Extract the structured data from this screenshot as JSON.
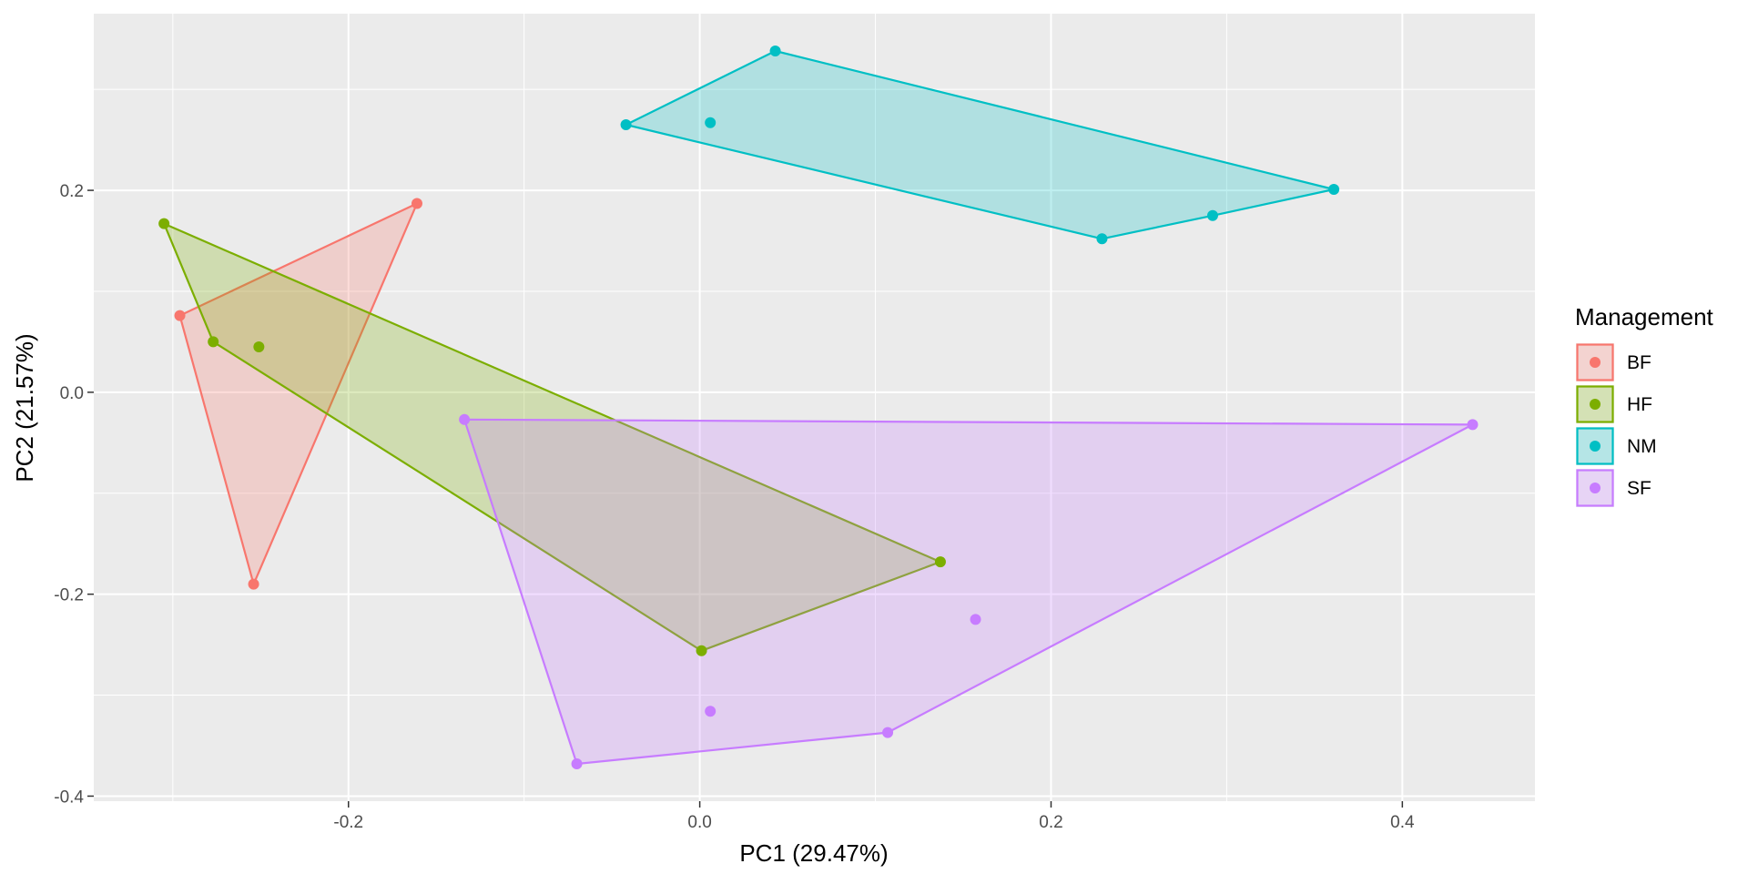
{
  "chart_data": {
    "type": "scatter",
    "xlabel": "PC1 (29.47%)",
    "ylabel": "PC2 (21.57%)",
    "xlim": [
      -0.345,
      0.4755
    ],
    "ylim": [
      -0.405,
      0.375
    ],
    "x_ticks": [
      -0.2,
      0.0,
      0.2,
      0.4
    ],
    "x_tick_labels": [
      "-0.2",
      "0.0",
      "0.2",
      "0.4"
    ],
    "y_ticks": [
      -0.4,
      -0.2,
      0.0,
      0.2
    ],
    "y_tick_labels": [
      "-0.4",
      "-0.2",
      "0.0",
      "0.2"
    ],
    "grid": true,
    "legend_title": "Management",
    "legend_position": "right",
    "hull_fill_alpha": 0.25,
    "series": [
      {
        "name": "BF",
        "color": "#F8766D",
        "points": [
          [
            -0.296,
            0.076
          ],
          [
            -0.161,
            0.187
          ],
          [
            -0.254,
            -0.19
          ]
        ],
        "hull": [
          [
            -0.296,
            0.076
          ],
          [
            -0.161,
            0.187
          ],
          [
            -0.254,
            -0.19
          ]
        ]
      },
      {
        "name": "HF",
        "color": "#7CAE00",
        "points": [
          [
            -0.305,
            0.167
          ],
          [
            -0.277,
            0.05
          ],
          [
            -0.251,
            0.045
          ],
          [
            0.137,
            -0.168
          ],
          [
            0.001,
            -0.256
          ]
        ],
        "hull": [
          [
            -0.305,
            0.167
          ],
          [
            0.137,
            -0.168
          ],
          [
            0.001,
            -0.256
          ],
          [
            -0.277,
            0.05
          ]
        ]
      },
      {
        "name": "NM",
        "color": "#00BFC4",
        "points": [
          [
            -0.042,
            0.265
          ],
          [
            0.043,
            0.338
          ],
          [
            0.006,
            0.267
          ],
          [
            0.361,
            0.201
          ],
          [
            0.292,
            0.175
          ],
          [
            0.229,
            0.152
          ]
        ],
        "hull": [
          [
            -0.042,
            0.265
          ],
          [
            0.043,
            0.338
          ],
          [
            0.361,
            0.201
          ],
          [
            0.292,
            0.175
          ],
          [
            0.229,
            0.152
          ]
        ]
      },
      {
        "name": "SF",
        "color": "#C77CFF",
        "points": [
          [
            -0.134,
            -0.027
          ],
          [
            0.44,
            -0.032
          ],
          [
            0.157,
            -0.225
          ],
          [
            0.107,
            -0.337
          ],
          [
            0.006,
            -0.316
          ],
          [
            -0.07,
            -0.368
          ]
        ],
        "hull": [
          [
            -0.134,
            -0.027
          ],
          [
            0.44,
            -0.032
          ],
          [
            0.107,
            -0.337
          ],
          [
            -0.07,
            -0.368
          ]
        ]
      }
    ]
  }
}
